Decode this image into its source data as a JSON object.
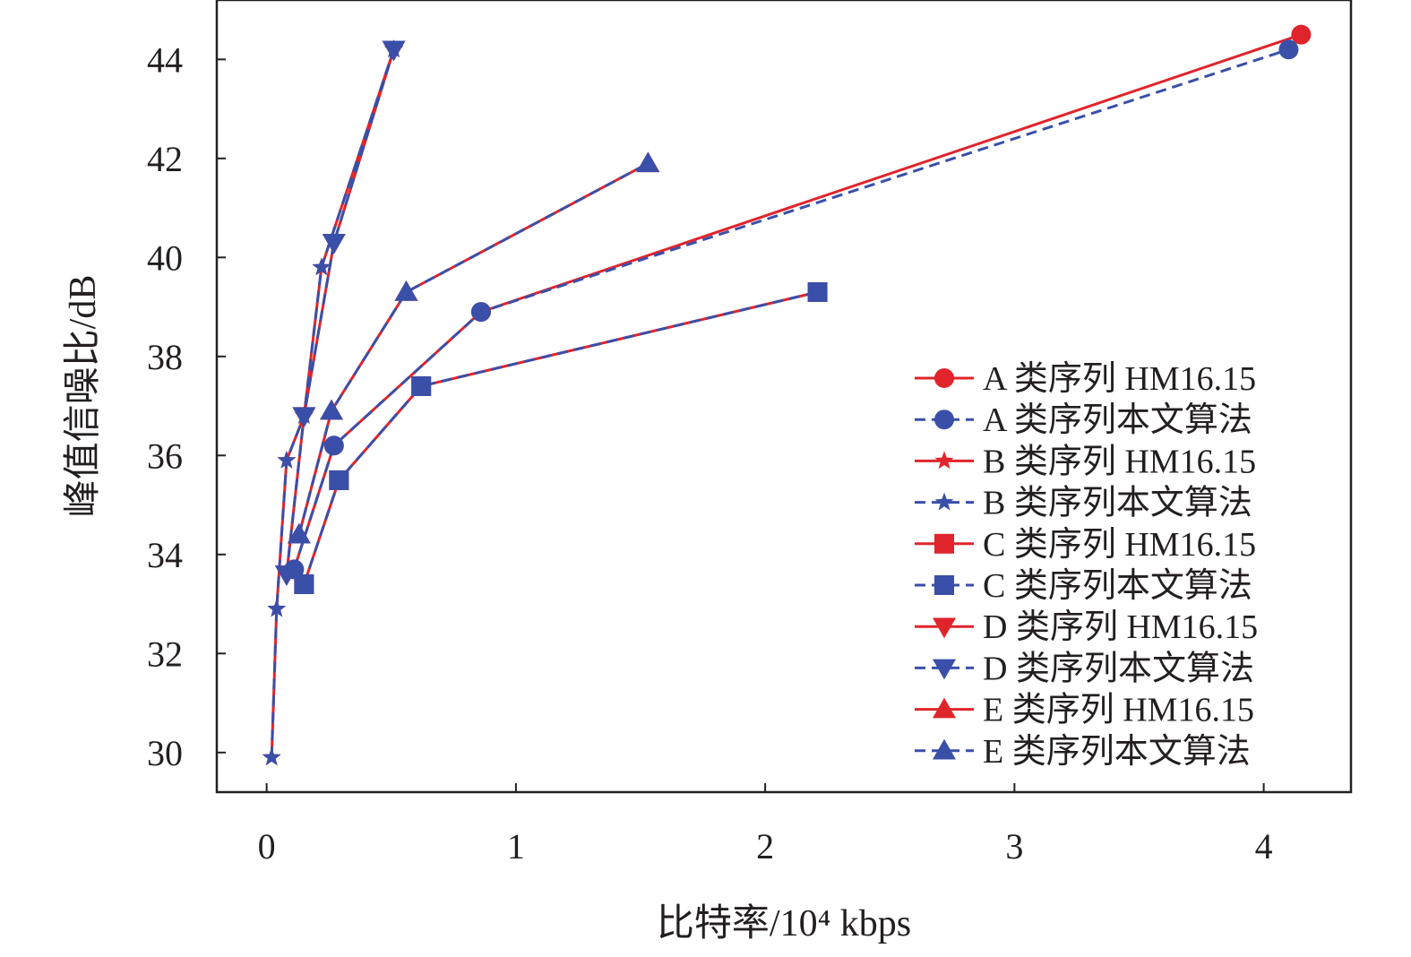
{
  "chart_data": {
    "type": "line",
    "xlabel": "比特率/10⁴ kbps",
    "ylabel": "峰值信噪比/dB",
    "xlim": [
      -0.2,
      4.35
    ],
    "ylim": [
      29.2,
      45.2
    ],
    "x_ticks": [
      0,
      1,
      2,
      3,
      4
    ],
    "y_ticks": [
      30,
      32,
      34,
      36,
      38,
      40,
      42,
      44
    ],
    "grid": false,
    "legend_position": "bottom-right",
    "colors": {
      "hm": "#e0242b",
      "proposed": "#3a4fa8",
      "text": "#231f20"
    },
    "series": [
      {
        "name": "A 类序列 HM16.15",
        "group": "A",
        "method": "hm",
        "marker": "circle",
        "points": [
          [
            0.11,
            33.7
          ],
          [
            0.27,
            36.2
          ],
          [
            0.86,
            38.9
          ],
          [
            4.15,
            44.5
          ]
        ]
      },
      {
        "name": "A 类序列本文算法",
        "group": "A",
        "method": "proposed",
        "marker": "circle",
        "points": [
          [
            0.11,
            33.7
          ],
          [
            0.27,
            36.2
          ],
          [
            0.86,
            38.9
          ],
          [
            4.1,
            44.2
          ]
        ]
      },
      {
        "name": "B 类序列 HM16.15",
        "group": "B",
        "method": "hm",
        "marker": "star",
        "points": [
          [
            0.02,
            29.9
          ],
          [
            0.04,
            32.9
          ],
          [
            0.08,
            35.9
          ],
          [
            0.15,
            36.8
          ],
          [
            0.22,
            39.8
          ],
          [
            0.51,
            44.2
          ]
        ]
      },
      {
        "name": "B 类序列本文算法",
        "group": "B",
        "method": "proposed",
        "marker": "star",
        "points": [
          [
            0.02,
            29.9
          ],
          [
            0.04,
            32.9
          ],
          [
            0.08,
            35.9
          ],
          [
            0.15,
            36.8
          ],
          [
            0.22,
            39.8
          ],
          [
            0.51,
            44.2
          ]
        ]
      },
      {
        "name": "C 类序列 HM16.15",
        "group": "C",
        "method": "hm",
        "marker": "square",
        "points": [
          [
            0.15,
            33.4
          ],
          [
            0.29,
            35.5
          ],
          [
            0.62,
            37.4
          ],
          [
            2.21,
            39.3
          ]
        ]
      },
      {
        "name": "C 类序列本文算法",
        "group": "C",
        "method": "proposed",
        "marker": "square",
        "points": [
          [
            0.15,
            33.4
          ],
          [
            0.29,
            35.5
          ],
          [
            0.62,
            37.4
          ],
          [
            2.21,
            39.3
          ]
        ]
      },
      {
        "name": "D 类序列 HM16.15",
        "group": "D",
        "method": "hm",
        "marker": "triangle-down",
        "points": [
          [
            0.08,
            33.6
          ],
          [
            0.15,
            36.8
          ],
          [
            0.27,
            40.3
          ],
          [
            0.51,
            44.2
          ]
        ]
      },
      {
        "name": "D 类序列本文算法",
        "group": "D",
        "method": "proposed",
        "marker": "triangle-down",
        "points": [
          [
            0.08,
            33.6
          ],
          [
            0.15,
            36.8
          ],
          [
            0.27,
            40.3
          ],
          [
            0.51,
            44.2
          ]
        ]
      },
      {
        "name": "E 类序列 HM16.15",
        "group": "E",
        "method": "hm",
        "marker": "triangle-up",
        "points": [
          [
            0.13,
            34.4
          ],
          [
            0.26,
            36.9
          ],
          [
            0.56,
            39.3
          ],
          [
            1.53,
            41.9
          ]
        ]
      },
      {
        "name": "E 类序列本文算法",
        "group": "E",
        "method": "proposed",
        "marker": "triangle-up",
        "points": [
          [
            0.13,
            34.4
          ],
          [
            0.26,
            36.9
          ],
          [
            0.56,
            39.3
          ],
          [
            1.53,
            41.9
          ]
        ]
      }
    ]
  }
}
